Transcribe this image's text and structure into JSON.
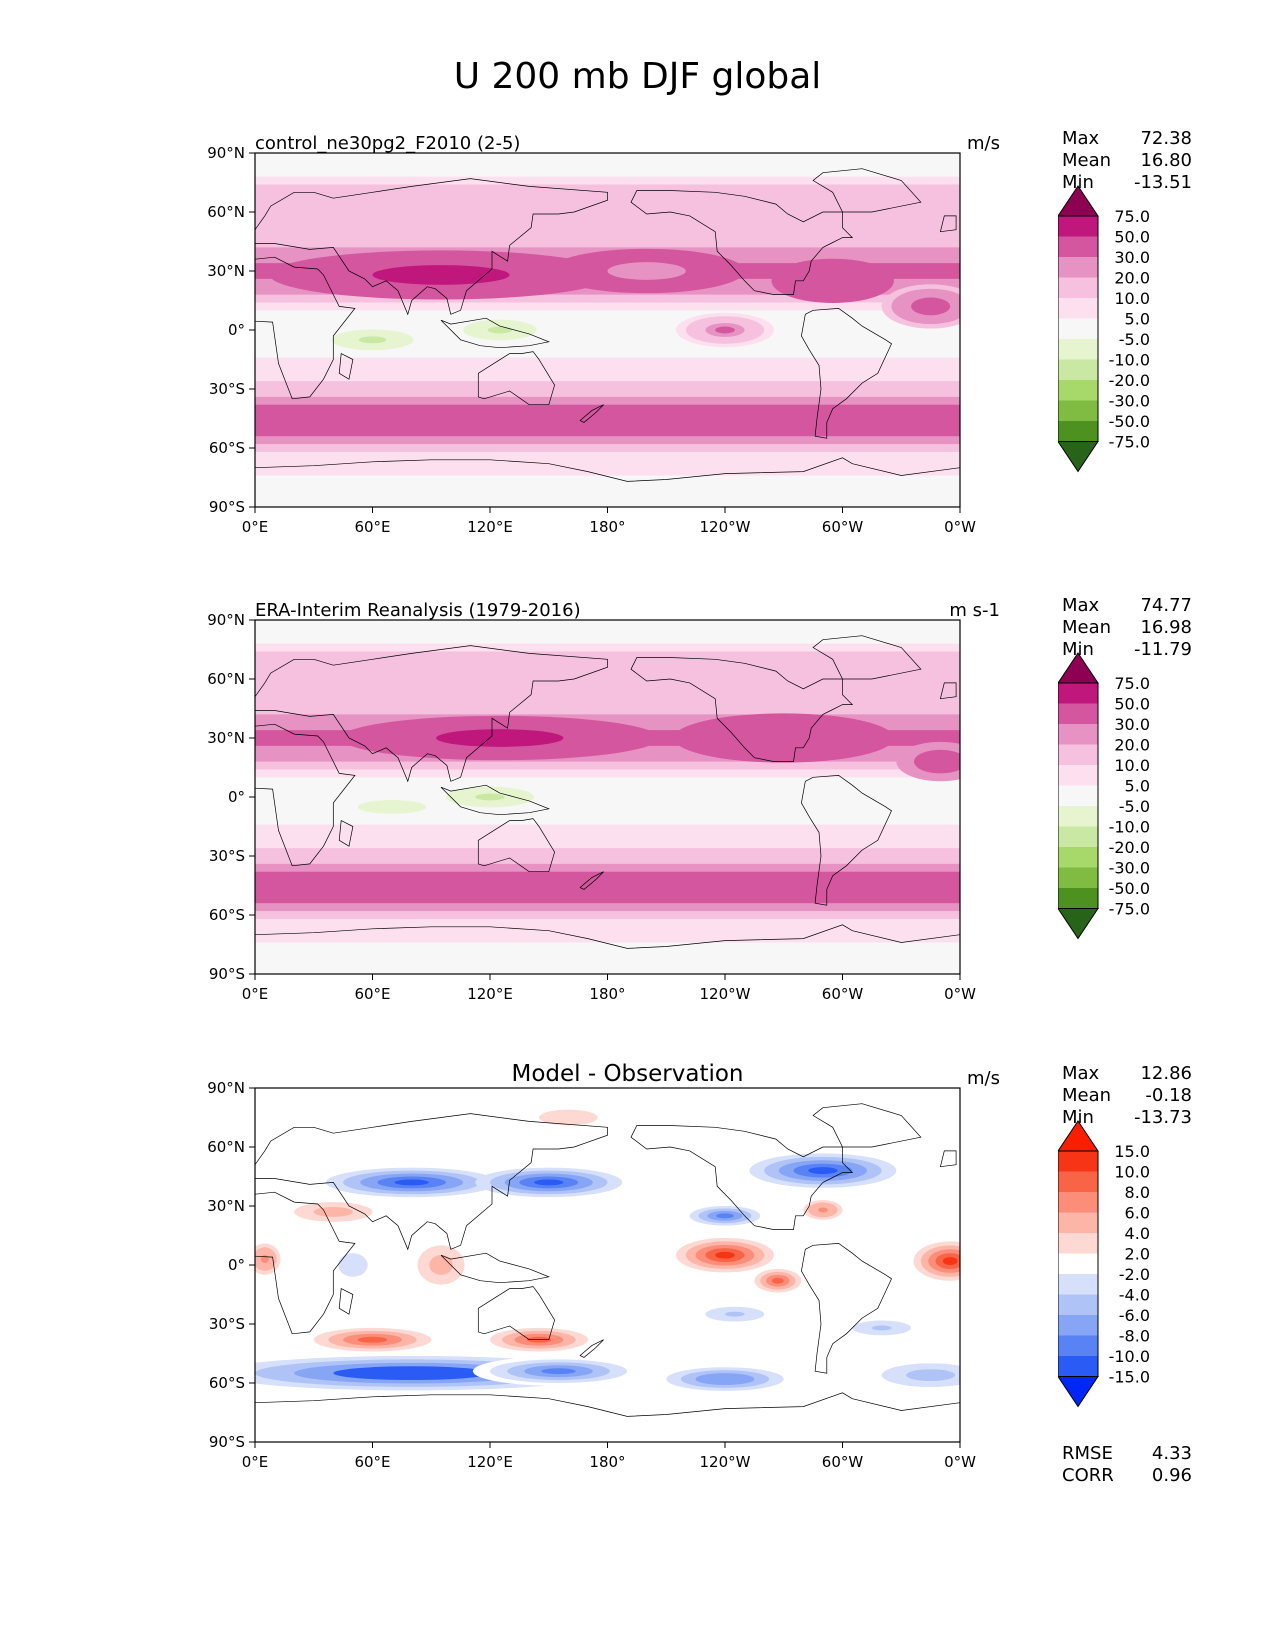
{
  "figure_title": "U 200 mb DJF global",
  "colors": {
    "pos_scale": [
      "#276419",
      "#4d9221",
      "#7fbc41",
      "#a6d96a",
      "#c9e8a3",
      "#e6f5d0",
      "#f7f7f7",
      "#fde0ef",
      "#f5c1df",
      "#e692c3",
      "#d3569f",
      "#c0177d",
      "#8e0152"
    ],
    "diff_scale": [
      "#0027f5",
      "#2a5bf5",
      "#5983f5",
      "#86a5f5",
      "#afc3f7",
      "#d6e0fb",
      "#ffffff",
      "#fed8d2",
      "#fdb5a8",
      "#fc8d79",
      "#fa6446",
      "#f73415",
      "#fa1e00"
    ],
    "land_line": "#000000"
  },
  "chart_data": [
    {
      "type": "heatmap",
      "panel": "model",
      "title_left": "control_ne30pg2_F2010 (2-5)",
      "title_right": "m/s",
      "stats": {
        "max_label": "Max",
        "max": "72.38",
        "mean_label": "Mean",
        "mean": "16.80",
        "min_label": "Min",
        "min": "-13.51"
      },
      "xticks": [
        "0°E",
        "60°E",
        "120°E",
        "180°",
        "120°W",
        "60°W",
        "0°W"
      ],
      "yticks": [
        "90°N",
        "60°N",
        "30°N",
        "0°",
        "30°S",
        "60°S",
        "90°S"
      ],
      "xlim": [
        0,
        360
      ],
      "ylim": [
        -90,
        90
      ],
      "colorbar_levels": [
        "75.0",
        "50.0",
        "30.0",
        "20.0",
        "10.0",
        "5.0",
        "-5.0",
        "-10.0",
        "-20.0",
        "-30.0",
        "-50.0",
        "-75.0"
      ],
      "field_features": [
        {
          "lon": 95,
          "lat": 28,
          "rlon": 70,
          "rlat": 10,
          "value": 55
        },
        {
          "lon": 200,
          "lat": 30,
          "rlon": 40,
          "rlat": 9,
          "value": 28
        },
        {
          "lon": 295,
          "lat": 25,
          "rlon": 25,
          "rlat": 9,
          "value": 40
        },
        {
          "lon": 345,
          "lat": 12,
          "rlon": 20,
          "rlat": 9,
          "value": 40
        },
        {
          "lon": 240,
          "lat": 0,
          "rlon": 20,
          "rlat": 7,
          "value": 33
        },
        {
          "lon": 60,
          "lat": -5,
          "rlon": 28,
          "rlat": 7,
          "value": -12
        },
        {
          "lon": 125,
          "lat": 0,
          "rlon": 25,
          "rlat": 7,
          "value": -12
        }
      ]
    },
    {
      "type": "heatmap",
      "panel": "obs",
      "title_left": "ERA-Interim Reanalysis (1979-2016)",
      "title_right": "m s-1",
      "stats": {
        "max_label": "Max",
        "max": "74.77",
        "mean_label": "Mean",
        "mean": "16.98",
        "min_label": "Min",
        "min": "-11.79"
      },
      "xticks": [
        "0°E",
        "60°E",
        "120°E",
        "180°",
        "120°W",
        "60°W",
        "0°W"
      ],
      "yticks": [
        "90°N",
        "60°N",
        "30°N",
        "0°",
        "30°S",
        "60°S",
        "90°S"
      ],
      "xlim": [
        0,
        360
      ],
      "ylim": [
        -90,
        90
      ],
      "colorbar_levels": [
        "75.0",
        "50.0",
        "30.0",
        "20.0",
        "10.0",
        "5.0",
        "-5.0",
        "-10.0",
        "-20.0",
        "-30.0",
        "-50.0",
        "-75.0"
      ],
      "field_features": [
        {
          "lon": 125,
          "lat": 30,
          "rlon": 65,
          "rlat": 9,
          "value": 58
        },
        {
          "lon": 270,
          "lat": 30,
          "rlon": 45,
          "rlat": 10,
          "value": 42
        },
        {
          "lon": 350,
          "lat": 18,
          "rlon": 18,
          "rlat": 8,
          "value": 38
        },
        {
          "lon": 70,
          "lat": -5,
          "rlon": 35,
          "rlat": 7,
          "value": -8
        },
        {
          "lon": 120,
          "lat": 0,
          "rlon": 30,
          "rlat": 7,
          "value": -12
        }
      ]
    },
    {
      "type": "heatmap",
      "panel": "diff",
      "title_center": "Model - Observation",
      "title_right": "m/s",
      "stats": {
        "max_label": "Max",
        "max": "12.86",
        "mean_label": "Mean",
        "mean": "-0.18",
        "min_label": "Min",
        "min": "-13.73"
      },
      "metrics": {
        "rmse_label": "RMSE",
        "rmse": "4.33",
        "corr_label": "CORR",
        "corr": "0.96"
      },
      "xticks": [
        "0°E",
        "60°E",
        "120°E",
        "180°",
        "120°W",
        "60°W",
        "0°W"
      ],
      "yticks": [
        "90°N",
        "60°N",
        "30°N",
        "0°",
        "30°S",
        "60°S",
        "90°S"
      ],
      "xlim": [
        0,
        360
      ],
      "ylim": [
        -90,
        90
      ],
      "colorbar_levels": [
        "15.0",
        "10.0",
        "8.0",
        "6.0",
        "4.0",
        "2.0",
        "-2.0",
        "-4.0",
        "-6.0",
        "-8.0",
        "-10.0",
        "-15.0"
      ],
      "field_features": [
        {
          "lon": 80,
          "lat": -55,
          "rlon": 80,
          "rlat": 7,
          "value": -13
        },
        {
          "lon": 155,
          "lat": -54,
          "rlon": 35,
          "rlat": 6,
          "value": -10
        },
        {
          "lon": 240,
          "lat": -58,
          "rlon": 30,
          "rlat": 6,
          "value": -8
        },
        {
          "lon": 345,
          "lat": -56,
          "rlon": 25,
          "rlat": 6,
          "value": -6
        },
        {
          "lon": 60,
          "lat": -38,
          "rlon": 30,
          "rlat": 6,
          "value": 9
        },
        {
          "lon": 145,
          "lat": -38,
          "rlon": 25,
          "rlat": 6,
          "value": 9
        },
        {
          "lon": 80,
          "lat": 42,
          "rlon": 35,
          "rlat": 6,
          "value": -11
        },
        {
          "lon": 150,
          "lat": 42,
          "rlon": 30,
          "rlat": 6,
          "value": -11
        },
        {
          "lon": 290,
          "lat": 48,
          "rlon": 30,
          "rlat": 7,
          "value": -12
        },
        {
          "lon": 240,
          "lat": 25,
          "rlon": 18,
          "rlat": 5,
          "value": -9
        },
        {
          "lon": 240,
          "lat": 5,
          "rlon": 20,
          "rlat": 7,
          "value": 11
        },
        {
          "lon": 267,
          "lat": -8,
          "rlon": 12,
          "rlat": 6,
          "value": 9
        },
        {
          "lon": 355,
          "lat": 2,
          "rlon": 15,
          "rlat": 8,
          "value": 10
        },
        {
          "lon": 290,
          "lat": 28,
          "rlon": 10,
          "rlat": 5,
          "value": 7
        },
        {
          "lon": 5,
          "lat": 3,
          "rlon": 8,
          "rlat": 8,
          "value": 7
        },
        {
          "lon": 95,
          "lat": 0,
          "rlon": 12,
          "rlat": 10,
          "value": 5
        },
        {
          "lon": 50,
          "lat": 0,
          "rlon": 10,
          "rlat": 8,
          "value": -4
        },
        {
          "lon": 40,
          "lat": 27,
          "rlon": 20,
          "rlat": 5,
          "value": 5
        },
        {
          "lon": 160,
          "lat": 75,
          "rlon": 30,
          "rlat": 8,
          "value": 3
        },
        {
          "lon": 245,
          "lat": -25,
          "rlon": 20,
          "rlat": 5,
          "value": -5
        },
        {
          "lon": 320,
          "lat": -32,
          "rlon": 20,
          "rlat": 5,
          "value": -5
        }
      ]
    }
  ]
}
